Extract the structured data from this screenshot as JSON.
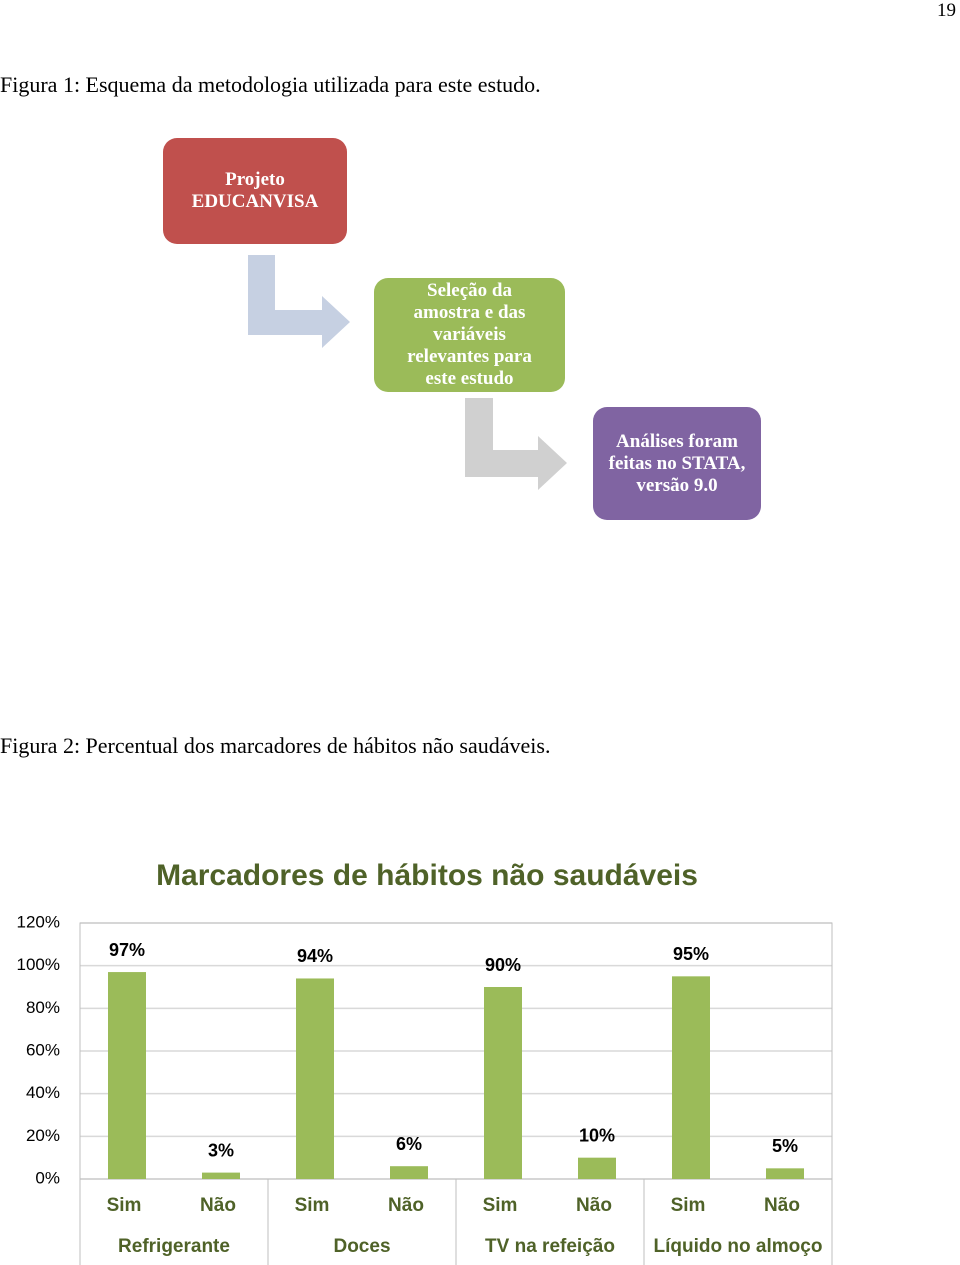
{
  "page_number": "19",
  "figure1": {
    "caption": "Figura 1: Esquema da metodologia utilizada para este estudo.",
    "nodes": [
      {
        "label": "Projeto EDUCANVISA"
      },
      {
        "label": "Seleção da amostra e das variáveis relevantes para este estudo"
      },
      {
        "label": "Análises foram feitas no STATA, versão 9.0"
      }
    ]
  },
  "figure2": {
    "caption": "Figura 2: Percentual dos marcadores de hábitos não saudáveis."
  },
  "chart_data": {
    "type": "bar",
    "title": "Marcadores de hábitos não saudáveis",
    "categories": [
      "Sim",
      "Não",
      "Sim",
      "Não",
      "Sim",
      "Não",
      "Sim",
      "Não"
    ],
    "groups": [
      "Refrigerante",
      "Doces",
      "TV na refeição",
      "Líquido no almoço"
    ],
    "values": [
      97,
      3,
      94,
      6,
      90,
      10,
      95,
      5
    ],
    "value_labels": [
      "97%",
      "3%",
      "94%",
      "6%",
      "90%",
      "10%",
      "95%",
      "5%"
    ],
    "color": "#9bbb59",
    "ylim": [
      0,
      120
    ],
    "yticks": [
      {
        "value": 0,
        "label": "0%"
      },
      {
        "value": 20,
        "label": "20%"
      },
      {
        "value": 40,
        "label": "40%"
      },
      {
        "value": 60,
        "label": "60%"
      },
      {
        "value": 80,
        "label": "80%"
      },
      {
        "value": 100,
        "label": "100%"
      },
      {
        "value": 120,
        "label": "120%"
      }
    ],
    "grid": true
  }
}
